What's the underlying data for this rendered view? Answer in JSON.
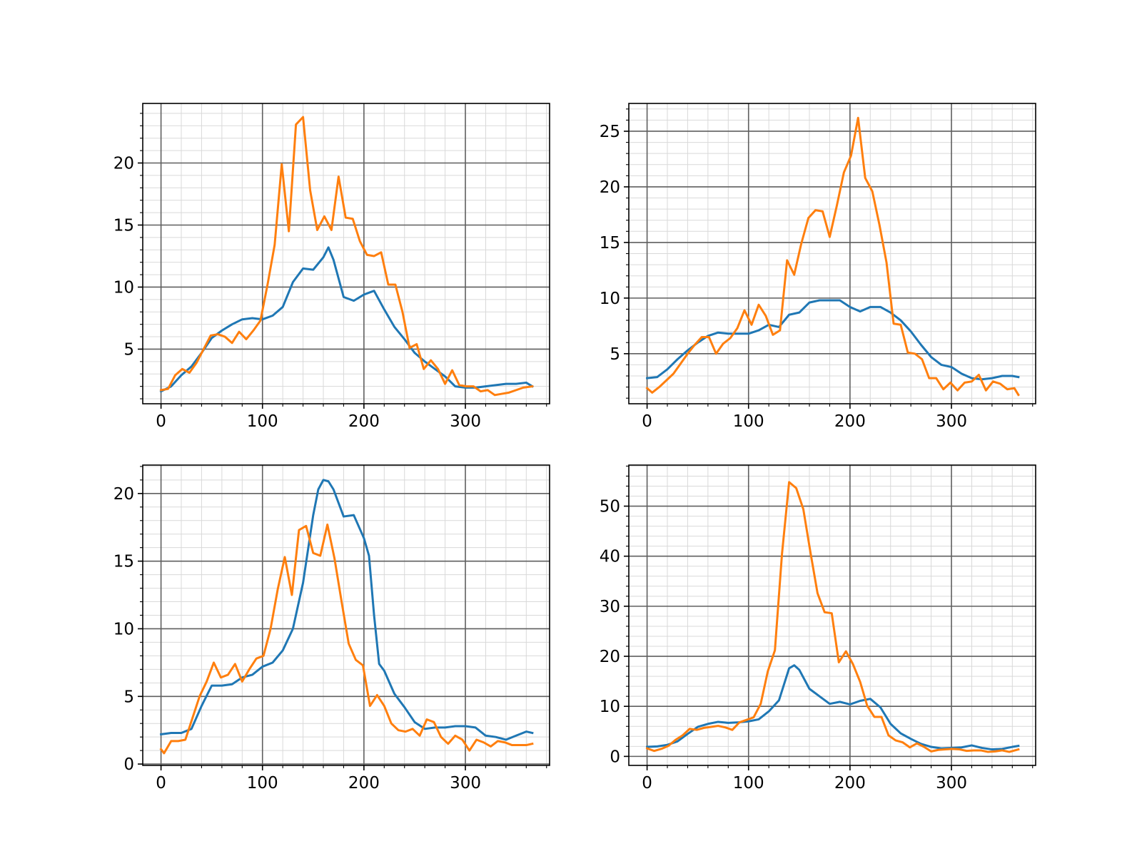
{
  "chart_data": [
    {
      "type": "line",
      "grid": "on",
      "xlim": [
        -18,
        383
      ],
      "ylim": [
        0.6,
        24.8
      ],
      "x_ticks": [
        0,
        100,
        200,
        300
      ],
      "y_ticks": [
        5,
        10,
        15,
        20
      ],
      "series": [
        {
          "color": "#1f77b4",
          "x": [
            0,
            10,
            20,
            30,
            40,
            50,
            60,
            70,
            80,
            90,
            100,
            110,
            120,
            130,
            140,
            150,
            160,
            165,
            170,
            180,
            190,
            200,
            210,
            220,
            230,
            240,
            250,
            260,
            270,
            280,
            290,
            300,
            310,
            320,
            330,
            340,
            350,
            360,
            366
          ],
          "y": [
            1.6,
            2.0,
            2.9,
            3.6,
            4.7,
            5.9,
            6.5,
            7.0,
            7.4,
            7.5,
            7.4,
            7.7,
            8.4,
            10.4,
            11.5,
            11.4,
            12.4,
            13.2,
            12.2,
            9.2,
            8.9,
            9.4,
            9.7,
            8.2,
            6.8,
            5.8,
            4.7,
            4.0,
            3.4,
            2.8,
            2.0,
            1.9,
            1.9,
            2.0,
            2.1,
            2.2,
            2.2,
            2.3,
            2.0
          ]
        },
        {
          "color": "#ff7f0e",
          "x": [
            0,
            7,
            14,
            21,
            28,
            35,
            42,
            49,
            56,
            63,
            70,
            77,
            84,
            91,
            98,
            105,
            112,
            119,
            126,
            133,
            140,
            147,
            154,
            161,
            168,
            175,
            182,
            189,
            196,
            203,
            210,
            217,
            224,
            231,
            238,
            245,
            252,
            259,
            266,
            273,
            280,
            287,
            294,
            301,
            308,
            315,
            322,
            329,
            336,
            343,
            350,
            357,
            366
          ],
          "y": [
            1.7,
            1.8,
            2.9,
            3.4,
            3.1,
            3.9,
            5.0,
            6.1,
            6.2,
            6.0,
            5.5,
            6.4,
            5.8,
            6.5,
            7.3,
            10.2,
            13.4,
            19.9,
            14.5,
            23.1,
            23.7,
            17.8,
            14.6,
            15.7,
            14.6,
            18.9,
            15.6,
            15.5,
            13.7,
            12.6,
            12.5,
            12.8,
            10.2,
            10.2,
            8.0,
            5.1,
            5.4,
            3.4,
            4.1,
            3.4,
            2.2,
            3.3,
            2.1,
            2.0,
            2.0,
            1.6,
            1.7,
            1.3,
            1.4,
            1.5,
            1.7,
            1.9,
            2.0
          ]
        }
      ]
    },
    {
      "type": "line",
      "grid": "on",
      "xlim": [
        -18,
        383
      ],
      "ylim": [
        0.5,
        27.5
      ],
      "x_ticks": [
        0,
        100,
        200,
        300
      ],
      "y_ticks": [
        5,
        10,
        15,
        20,
        25
      ],
      "series": [
        {
          "color": "#1f77b4",
          "x": [
            0,
            10,
            20,
            30,
            40,
            50,
            60,
            70,
            80,
            90,
            100,
            110,
            120,
            130,
            140,
            150,
            160,
            170,
            180,
            190,
            200,
            210,
            220,
            230,
            240,
            250,
            260,
            270,
            280,
            290,
            300,
            310,
            320,
            330,
            340,
            350,
            360,
            366
          ],
          "y": [
            2.8,
            2.9,
            3.6,
            4.5,
            5.3,
            6.0,
            6.6,
            6.9,
            6.8,
            6.8,
            6.8,
            7.1,
            7.6,
            7.4,
            8.5,
            8.7,
            9.6,
            9.8,
            9.8,
            9.8,
            9.2,
            8.8,
            9.2,
            9.2,
            8.7,
            8.0,
            7.0,
            5.8,
            4.7,
            4.0,
            3.8,
            3.2,
            2.8,
            2.7,
            2.8,
            3.0,
            3.0,
            2.9
          ]
        },
        {
          "color": "#ff7f0e",
          "x": [
            0,
            5,
            12,
            19,
            26,
            33,
            40,
            47,
            54,
            61,
            68,
            75,
            82,
            89,
            96,
            103,
            110,
            117,
            124,
            131,
            138,
            145,
            152,
            159,
            166,
            173,
            180,
            187,
            194,
            201,
            208,
            215,
            222,
            229,
            236,
            243,
            250,
            257,
            264,
            271,
            278,
            285,
            292,
            299,
            306,
            313,
            320,
            327,
            334,
            341,
            348,
            355,
            362,
            366
          ],
          "y": [
            1.9,
            1.5,
            2.0,
            2.6,
            3.2,
            4.1,
            5.0,
            5.8,
            6.5,
            6.5,
            5.0,
            5.9,
            6.4,
            7.3,
            8.9,
            7.6,
            9.4,
            8.4,
            6.7,
            7.1,
            13.4,
            12.1,
            14.9,
            17.2,
            17.9,
            17.8,
            15.5,
            18.3,
            21.3,
            22.8,
            26.2,
            20.8,
            19.6,
            16.6,
            13.2,
            7.7,
            7.6,
            5.1,
            5.0,
            4.5,
            2.8,
            2.8,
            1.8,
            2.4,
            1.7,
            2.4,
            2.5,
            3.1,
            1.7,
            2.5,
            2.3,
            1.8,
            1.9,
            1.3
          ]
        }
      ]
    },
    {
      "type": "line",
      "grid": "on",
      "xlim": [
        -18,
        383
      ],
      "ylim": [
        -0.1,
        22.1
      ],
      "x_ticks": [
        0,
        100,
        200,
        300
      ],
      "y_ticks": [
        0,
        5,
        10,
        15,
        20
      ],
      "series": [
        {
          "color": "#1f77b4",
          "x": [
            0,
            10,
            20,
            30,
            40,
            50,
            60,
            70,
            80,
            90,
            100,
            110,
            120,
            130,
            140,
            150,
            155,
            160,
            165,
            170,
            180,
            190,
            200,
            205,
            210,
            215,
            220,
            230,
            240,
            250,
            260,
            270,
            280,
            290,
            300,
            310,
            320,
            330,
            340,
            350,
            360,
            366
          ],
          "y": [
            2.2,
            2.3,
            2.3,
            2.6,
            4.3,
            5.8,
            5.8,
            5.9,
            6.4,
            6.6,
            7.2,
            7.5,
            8.4,
            10.0,
            13.4,
            18.4,
            20.3,
            21.0,
            20.9,
            20.3,
            18.3,
            18.4,
            16.7,
            15.4,
            11.0,
            7.4,
            6.9,
            5.2,
            4.2,
            3.1,
            2.6,
            2.7,
            2.7,
            2.8,
            2.8,
            2.7,
            2.1,
            2.0,
            1.8,
            2.1,
            2.4,
            2.3
          ]
        },
        {
          "color": "#ff7f0e",
          "x": [
            0,
            3,
            10,
            17,
            24,
            31,
            38,
            45,
            52,
            59,
            66,
            73,
            80,
            87,
            94,
            101,
            108,
            115,
            122,
            129,
            136,
            143,
            150,
            157,
            164,
            171,
            178,
            185,
            192,
            199,
            206,
            213,
            220,
            227,
            234,
            241,
            248,
            255,
            262,
            269,
            276,
            283,
            290,
            297,
            304,
            311,
            318,
            325,
            332,
            339,
            346,
            353,
            360,
            366
          ],
          "y": [
            1.1,
            0.8,
            1.7,
            1.7,
            1.8,
            3.4,
            5.0,
            6.1,
            7.5,
            6.4,
            6.6,
            7.4,
            6.1,
            7.0,
            7.8,
            8.0,
            10.0,
            12.9,
            15.3,
            12.5,
            17.3,
            17.6,
            15.6,
            15.4,
            17.7,
            15.2,
            12.0,
            8.9,
            7.7,
            7.3,
            4.3,
            5.1,
            4.3,
            3.0,
            2.5,
            2.4,
            2.6,
            2.1,
            3.3,
            3.1,
            2.0,
            1.5,
            2.1,
            1.8,
            1.0,
            1.8,
            1.6,
            1.3,
            1.7,
            1.6,
            1.4,
            1.4,
            1.4,
            1.5
          ]
        }
      ]
    },
    {
      "type": "line",
      "grid": "on",
      "xlim": [
        -18,
        383
      ],
      "ylim": [
        -1.8,
        58.2
      ],
      "x_ticks": [
        0,
        100,
        200,
        300
      ],
      "y_ticks": [
        0,
        10,
        20,
        30,
        40,
        50
      ],
      "series": [
        {
          "color": "#1f77b4",
          "x": [
            0,
            10,
            20,
            30,
            40,
            50,
            60,
            70,
            80,
            90,
            100,
            110,
            120,
            130,
            140,
            145,
            150,
            160,
            170,
            180,
            190,
            200,
            210,
            220,
            230,
            240,
            250,
            260,
            270,
            280,
            290,
            300,
            310,
            320,
            330,
            340,
            350,
            360,
            366
          ],
          "y": [
            1.9,
            2.0,
            2.3,
            3.0,
            4.5,
            5.9,
            6.5,
            6.9,
            6.7,
            6.8,
            7.0,
            7.4,
            9.0,
            11.2,
            17.6,
            18.2,
            17.3,
            13.5,
            12.0,
            10.5,
            10.9,
            10.4,
            11.1,
            11.5,
            9.8,
            6.5,
            4.6,
            3.5,
            2.5,
            1.9,
            1.6,
            1.7,
            1.8,
            2.2,
            1.7,
            1.4,
            1.5,
            1.9,
            2.1
          ]
        },
        {
          "color": "#ff7f0e",
          "x": [
            0,
            7,
            14,
            21,
            28,
            35,
            42,
            49,
            56,
            63,
            70,
            77,
            84,
            91,
            98,
            105,
            112,
            119,
            126,
            133,
            140,
            147,
            154,
            161,
            168,
            175,
            182,
            189,
            196,
            203,
            210,
            217,
            224,
            231,
            238,
            245,
            252,
            259,
            266,
            273,
            280,
            287,
            294,
            301,
            308,
            315,
            322,
            329,
            336,
            343,
            350,
            357,
            366
          ],
          "y": [
            1.6,
            1.1,
            1.5,
            2.1,
            3.3,
            4.2,
            5.5,
            5.3,
            5.7,
            5.9,
            6.1,
            5.8,
            5.3,
            6.8,
            7.3,
            7.8,
            10.5,
            17.0,
            21.2,
            40.5,
            54.8,
            53.6,
            49.4,
            40.8,
            32.6,
            28.8,
            28.6,
            18.8,
            21.0,
            18.4,
            14.9,
            10.1,
            7.9,
            7.9,
            4.2,
            3.2,
            2.8,
            1.8,
            2.6,
            1.9,
            1.0,
            1.3,
            1.4,
            1.5,
            1.4,
            1.1,
            1.2,
            1.2,
            0.9,
            1.0,
            1.2,
            0.9,
            1.4
          ]
        }
      ]
    }
  ]
}
